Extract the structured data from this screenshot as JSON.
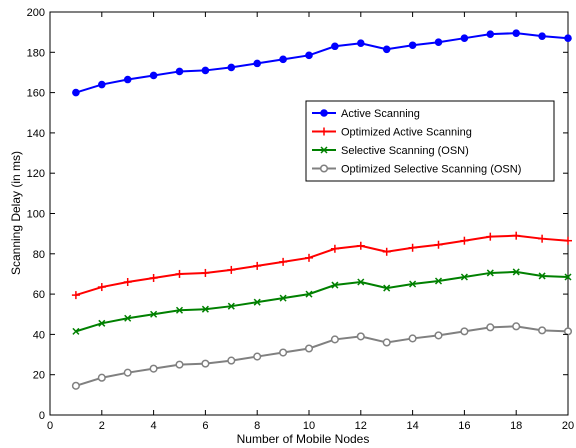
{
  "chart_data": {
    "type": "line",
    "title": "",
    "xlabel": "Number of Mobile Nodes",
    "ylabel": "Scanning Delay (in ms)",
    "xlim": [
      0,
      20
    ],
    "ylim": [
      0,
      200
    ],
    "xticks": [
      0,
      2,
      4,
      6,
      8,
      10,
      12,
      14,
      16,
      18,
      20
    ],
    "yticks": [
      0,
      20,
      40,
      60,
      80,
      100,
      120,
      140,
      160,
      180,
      200
    ],
    "grid": false,
    "legend_position": "right",
    "x": [
      1,
      2,
      3,
      4,
      5,
      6,
      7,
      8,
      9,
      10,
      11,
      12,
      13,
      14,
      15,
      16,
      17,
      18,
      19,
      20
    ],
    "series": [
      {
        "name": "Active Scanning",
        "color": "#0000ff",
        "marker": "circle-filled",
        "values": [
          160,
          164,
          166.5,
          168.5,
          170.5,
          171,
          172.5,
          174.5,
          176.5,
          178.5,
          183,
          184.5,
          181.5,
          183.5,
          185,
          187,
          189,
          189.5,
          188,
          187
        ]
      },
      {
        "name": "Optimized Active Scanning",
        "color": "#ff0000",
        "marker": "plus",
        "values": [
          59.5,
          63.5,
          66,
          68,
          70,
          70.5,
          72,
          74,
          76,
          78,
          82.5,
          84,
          81,
          83,
          84.5,
          86.5,
          88.5,
          89,
          87.5,
          86.5
        ]
      },
      {
        "name": "Selective Scanning (OSN)",
        "color": "#008000",
        "marker": "x",
        "values": [
          41.5,
          45.5,
          48,
          50,
          52,
          52.5,
          54,
          56,
          58,
          60,
          64.5,
          66,
          63,
          65,
          66.5,
          68.5,
          70.5,
          71,
          69,
          68.5
        ]
      },
      {
        "name": "Optimized Selective Scanning (OSN)",
        "color": "#808080",
        "marker": "circle-open",
        "values": [
          14.5,
          18.5,
          21,
          23,
          25,
          25.5,
          27,
          29,
          31,
          33,
          37.5,
          39,
          36,
          38,
          39.5,
          41.5,
          43.5,
          44,
          42,
          41.5
        ]
      }
    ]
  }
}
